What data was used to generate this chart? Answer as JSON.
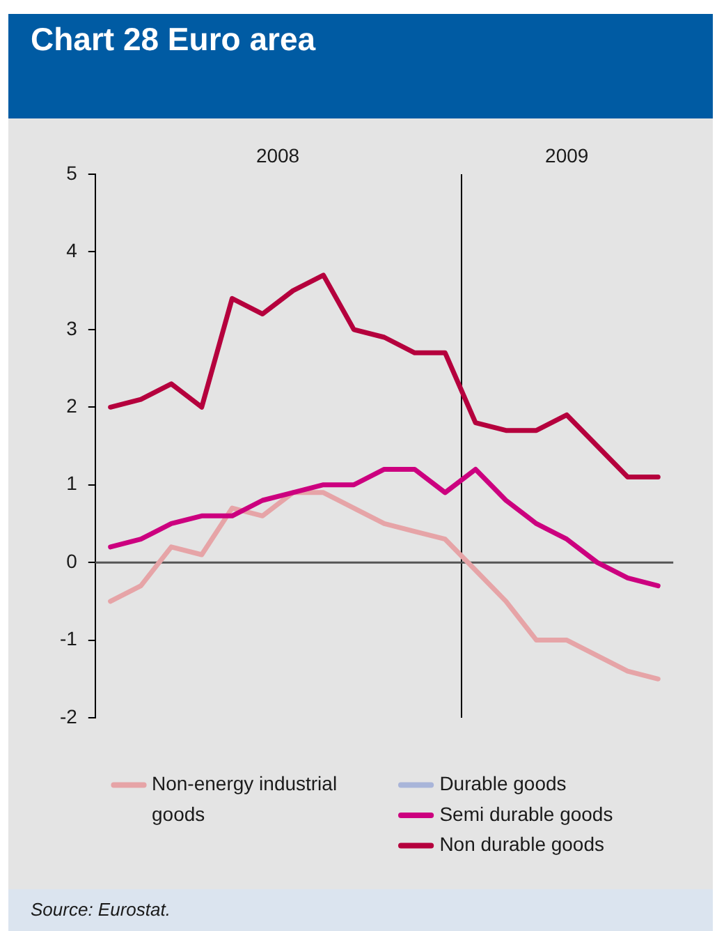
{
  "chart_data": {
    "type": "line",
    "title": "Chart 28 Euro area",
    "categories": [
      null,
      null,
      null,
      null,
      null,
      null,
      null,
      null,
      null,
      null,
      null,
      null,
      null,
      null,
      null,
      null,
      null,
      null,
      null
    ],
    "series": [
      {
        "name": "Non-energy industrial goods",
        "color": "#e6a4a7",
        "values": [
          -0.5,
          -0.3,
          0.2,
          0.1,
          0.7,
          0.6,
          0.9,
          0.9,
          0.7,
          0.5,
          0.4,
          0.3,
          -0.1,
          -0.5,
          -1,
          -1,
          -1.2,
          -1.4,
          -1.5
        ]
      },
      {
        "name": "Durable goods",
        "color": "#a9b5d9",
        "values": [
          null,
          null,
          null,
          null,
          null,
          null,
          null,
          null,
          null,
          null,
          null,
          null,
          null,
          null,
          null,
          null,
          null,
          null,
          null
        ]
      },
      {
        "name": "Semi durable goods",
        "color": "#cc007f",
        "values": [
          0.2,
          0.3,
          0.5,
          0.6,
          0.6,
          0.8,
          0.9,
          1,
          1,
          1.2,
          1.2,
          0.9,
          1.2,
          0.8,
          0.5,
          0.3,
          0,
          -0.2,
          -0.3
        ]
      },
      {
        "name": "Non durable goods",
        "color": "#b5003d",
        "values": [
          2,
          2.1,
          2.3,
          2,
          3.4,
          3.2,
          3.5,
          3.7,
          3,
          2.9,
          2.7,
          2.7,
          1.8,
          1.7,
          1.7,
          1.9,
          1.5,
          1.1,
          1.1
        ]
      }
    ],
    "ylim": [
      -2,
      5
    ],
    "yticks": [
      -2,
      -1,
      0,
      1,
      2,
      3,
      4,
      5
    ],
    "annotations": [
      "2008",
      "2009",
      "Source: Eurostat."
    ],
    "legend": "bottom",
    "tick_labels": "y"
  }
}
